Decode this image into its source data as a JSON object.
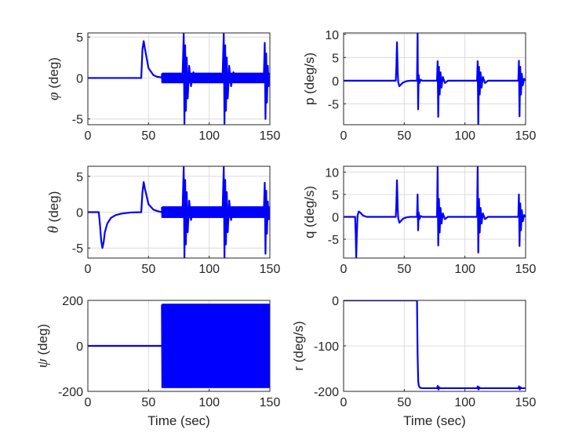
{
  "colors": {
    "series": "#0000ff",
    "axis": "#262626",
    "grid": "#dcdcdc",
    "background": "#ffffff"
  },
  "chart_data": [
    {
      "id": "phi",
      "type": "line",
      "ylabel_symbol": "φ",
      "ylabel_unit": " (deg)",
      "xlabel": "",
      "xlim": [
        0,
        150
      ],
      "ylim": [
        -5.7,
        5.5
      ],
      "xticks": [
        "0",
        "50",
        "100",
        "150"
      ],
      "yticks": [
        "-5",
        "0",
        "5"
      ],
      "grid": true,
      "series": [
        {
          "points": [
            [
              0,
              0
            ],
            [
              44,
              0
            ],
            [
              45,
              3.5
            ],
            [
              46,
              4.5
            ],
            [
              47,
              3.6
            ],
            [
              50,
              1.2
            ],
            [
              54,
              0.35
            ],
            [
              57,
              0.15
            ],
            [
              60,
              0.1
            ],
            [
              61,
              0
            ],
            [
              78,
              0
            ],
            [
              79,
              5.4
            ],
            [
              79.6,
              -5.6
            ],
            [
              80.2,
              4
            ],
            [
              80.8,
              -4
            ],
            [
              81.5,
              2.5
            ],
            [
              82.3,
              -2.5
            ],
            [
              83.5,
              1.5
            ],
            [
              85,
              -1
            ],
            [
              87,
              0.7
            ],
            [
              89,
              0
            ],
            [
              111,
              0
            ],
            [
              112,
              5.4
            ],
            [
              112.6,
              -5.6
            ],
            [
              113.2,
              4
            ],
            [
              113.8,
              -4
            ],
            [
              114.5,
              2.5
            ],
            [
              115.3,
              -2.5
            ],
            [
              116.5,
              1.5
            ],
            [
              118,
              -1
            ],
            [
              120,
              0.7
            ],
            [
              122,
              0
            ],
            [
              145,
              0
            ],
            [
              145.8,
              4.3
            ],
            [
              146.4,
              -5
            ],
            [
              147,
              3
            ],
            [
              147.6,
              -3
            ],
            [
              148.3,
              1.5
            ],
            [
              149,
              -1
            ],
            [
              150,
              0
            ]
          ]
        }
      ],
      "bands": [
        {
          "x": [
            61,
            150
          ],
          "amp": 0.55,
          "base": 0,
          "step": 0.3
        }
      ]
    },
    {
      "id": "p",
      "type": "line",
      "ylabel": "p (deg/s)",
      "xlabel": "",
      "xlim": [
        0,
        150
      ],
      "ylim": [
        -9.5,
        10.3
      ],
      "xticks": [
        "0",
        "50",
        "100",
        "150"
      ],
      "yticks": [
        "-5",
        "0",
        "5",
        "10"
      ],
      "grid": true,
      "series": [
        {
          "points": [
            [
              0,
              0
            ],
            [
              43,
              0
            ],
            [
              43.5,
              3
            ],
            [
              44,
              8.3
            ],
            [
              44.6,
              2
            ],
            [
              45,
              -0.3
            ],
            [
              46,
              -1.2
            ],
            [
              47,
              -0.9
            ],
            [
              49,
              -0.4
            ],
            [
              52,
              -0.1
            ],
            [
              55,
              0
            ],
            [
              60.5,
              0
            ],
            [
              61,
              10.3
            ],
            [
              61.4,
              -6.2
            ],
            [
              61.9,
              1.2
            ],
            [
              62.5,
              -0.5
            ],
            [
              63.5,
              0.2
            ],
            [
              65,
              0
            ],
            [
              77,
              0
            ],
            [
              77.5,
              4.2
            ],
            [
              78,
              -7.8
            ],
            [
              78.6,
              3
            ],
            [
              79.2,
              -3
            ],
            [
              79.9,
              1.8
            ],
            [
              80.7,
              -1.5
            ],
            [
              81.8,
              0.8
            ],
            [
              83.5,
              -0.5
            ],
            [
              86,
              0
            ],
            [
              110,
              0
            ],
            [
              110.5,
              4.2
            ],
            [
              111,
              -9.4
            ],
            [
              111.6,
              3
            ],
            [
              112.2,
              -3
            ],
            [
              112.9,
              1.8
            ],
            [
              113.7,
              -1.5
            ],
            [
              114.8,
              0.8
            ],
            [
              116.5,
              -0.5
            ],
            [
              119,
              0
            ],
            [
              144,
              0
            ],
            [
              144.5,
              4.3
            ],
            [
              145,
              -7.7
            ],
            [
              145.6,
              3
            ],
            [
              146.2,
              -3
            ],
            [
              146.9,
              1.5
            ],
            [
              147.7,
              -1
            ],
            [
              148.8,
              0.4
            ],
            [
              150,
              0
            ]
          ]
        }
      ],
      "bands": []
    },
    {
      "id": "theta",
      "type": "line",
      "ylabel_symbol": "θ",
      "ylabel_unit": " (deg)",
      "xlabel": "",
      "xlim": [
        0,
        150
      ],
      "ylim": [
        -6.4,
        6.4
      ],
      "xticks": [
        "0",
        "50",
        "100",
        "150"
      ],
      "yticks": [
        "-5",
        "0",
        "5"
      ],
      "grid": true,
      "series": [
        {
          "points": [
            [
              0,
              0
            ],
            [
              9,
              0
            ],
            [
              10,
              -1.8
            ],
            [
              11,
              -4
            ],
            [
              12,
              -5
            ],
            [
              13,
              -4.2
            ],
            [
              14,
              -2.8
            ],
            [
              16,
              -1.6
            ],
            [
              19,
              -0.8
            ],
            [
              23,
              -0.4
            ],
            [
              28,
              -0.2
            ],
            [
              35,
              -0.05
            ],
            [
              44,
              0
            ],
            [
              45,
              2.8
            ],
            [
              46,
              4.2
            ],
            [
              47,
              3.3
            ],
            [
              50,
              1.1
            ],
            [
              54,
              0.35
            ],
            [
              58,
              0.12
            ],
            [
              61,
              0
            ],
            [
              78,
              0
            ],
            [
              79,
              6.3
            ],
            [
              79.6,
              -6.4
            ],
            [
              80.2,
              4.5
            ],
            [
              80.8,
              -4.5
            ],
            [
              81.5,
              2.8
            ],
            [
              82.3,
              -2.8
            ],
            [
              83.5,
              1.6
            ],
            [
              85,
              -1.1
            ],
            [
              87,
              0.7
            ],
            [
              89,
              0
            ],
            [
              111,
              0
            ],
            [
              112,
              6.3
            ],
            [
              112.6,
              -6.4
            ],
            [
              113.2,
              4.5
            ],
            [
              113.8,
              -4.5
            ],
            [
              114.5,
              2.8
            ],
            [
              115.3,
              -2.8
            ],
            [
              116.5,
              1.6
            ],
            [
              118,
              -1.1
            ],
            [
              120,
              0.7
            ],
            [
              122,
              0
            ],
            [
              145,
              0
            ],
            [
              145.8,
              4.1
            ],
            [
              146.4,
              -5.8
            ],
            [
              147,
              3
            ],
            [
              147.6,
              -3
            ],
            [
              148.3,
              1.5
            ],
            [
              149,
              -1
            ],
            [
              150,
              0
            ]
          ]
        }
      ],
      "bands": [
        {
          "x": [
            61,
            150
          ],
          "amp": 0.7,
          "base": 0,
          "step": 0.3
        }
      ]
    },
    {
      "id": "q",
      "type": "line",
      "ylabel": "q (deg/s)",
      "xlabel": "",
      "xlim": [
        0,
        150
      ],
      "ylim": [
        -9.2,
        11.3
      ],
      "xticks": [
        "0",
        "50",
        "100",
        "150"
      ],
      "yticks": [
        "-5",
        "0",
        "5",
        "10"
      ],
      "grid": true,
      "series": [
        {
          "points": [
            [
              0,
              0
            ],
            [
              9.5,
              0
            ],
            [
              10,
              -4
            ],
            [
              10.4,
              -9.2
            ],
            [
              10.9,
              -4
            ],
            [
              11.5,
              0.3
            ],
            [
              12.5,
              1.2
            ],
            [
              14,
              0.9
            ],
            [
              16,
              0.3
            ],
            [
              19,
              0
            ],
            [
              43,
              0
            ],
            [
              43.5,
              3
            ],
            [
              44,
              8.2
            ],
            [
              44.6,
              2
            ],
            [
              45,
              -0.3
            ],
            [
              46,
              -1.3
            ],
            [
              47,
              -1
            ],
            [
              49,
              -0.4
            ],
            [
              52,
              -0.1
            ],
            [
              55,
              0
            ],
            [
              60.5,
              0
            ],
            [
              61,
              5
            ],
            [
              61.4,
              -3
            ],
            [
              61.9,
              1
            ],
            [
              62.5,
              -0.5
            ],
            [
              63.5,
              0.2
            ],
            [
              65,
              0
            ],
            [
              77,
              0
            ],
            [
              77.5,
              11.2
            ],
            [
              78,
              -6.4
            ],
            [
              78.6,
              4
            ],
            [
              79.2,
              -3.5
            ],
            [
              79.9,
              2
            ],
            [
              80.7,
              -1.5
            ],
            [
              81.8,
              0.8
            ],
            [
              83.5,
              -0.5
            ],
            [
              86,
              0
            ],
            [
              110,
              0
            ],
            [
              110.5,
              11.2
            ],
            [
              111,
              -8
            ],
            [
              111.6,
              4
            ],
            [
              112.2,
              -3.5
            ],
            [
              112.9,
              2
            ],
            [
              113.7,
              -1.5
            ],
            [
              114.8,
              0.8
            ],
            [
              116.5,
              -0.5
            ],
            [
              119,
              0
            ],
            [
              144,
              0
            ],
            [
              144.5,
              5
            ],
            [
              145,
              -6.5
            ],
            [
              145.6,
              3
            ],
            [
              146.2,
              -3
            ],
            [
              146.9,
              1.5
            ],
            [
              147.7,
              -1
            ],
            [
              148.8,
              0.4
            ],
            [
              150,
              0
            ]
          ]
        }
      ],
      "bands": []
    },
    {
      "id": "psi",
      "type": "line",
      "ylabel_symbol": "ψ",
      "ylabel_unit": " (deg)",
      "xlabel": "Time (sec)",
      "xlim": [
        0,
        150
      ],
      "ylim": [
        -200,
        200
      ],
      "xticks": [
        "0",
        "50",
        "100",
        "150"
      ],
      "yticks": [
        "-200",
        "0",
        "200"
      ],
      "grid": true,
      "series": [
        {
          "points": [
            [
              0,
              0
            ],
            [
              61,
              0
            ]
          ]
        }
      ],
      "bands": [
        {
          "x": [
            61,
            150
          ],
          "amp": 182,
          "base": 0,
          "step": 0.35
        }
      ]
    },
    {
      "id": "r",
      "type": "line",
      "ylabel": "r (deg/s)",
      "xlabel": "Time (sec)",
      "xlim": [
        0,
        150
      ],
      "ylim": [
        -200,
        0
      ],
      "xticks": [
        "0",
        "50",
        "100",
        "150"
      ],
      "yticks": [
        "-200",
        "-100",
        "0"
      ],
      "grid": true,
      "series": [
        {
          "points": [
            [
              0,
              0
            ],
            [
              60.5,
              0
            ],
            [
              61,
              -120
            ],
            [
              61.5,
              -178
            ],
            [
              62,
              -188
            ],
            [
              63,
              -192
            ],
            [
              65,
              -193
            ],
            [
              77,
              -193
            ],
            [
              77.6,
              -188
            ],
            [
              78.2,
              -196
            ],
            [
              78.8,
              -191
            ],
            [
              79.5,
              -193
            ],
            [
              110,
              -193
            ],
            [
              110.6,
              -189
            ],
            [
              111.2,
              -196
            ],
            [
              111.8,
              -191
            ],
            [
              112.5,
              -193
            ],
            [
              144,
              -193
            ],
            [
              144.6,
              -189
            ],
            [
              145.2,
              -196
            ],
            [
              145.8,
              -191
            ],
            [
              146.5,
              -193
            ],
            [
              150,
              -193
            ]
          ]
        }
      ],
      "bands": []
    }
  ]
}
